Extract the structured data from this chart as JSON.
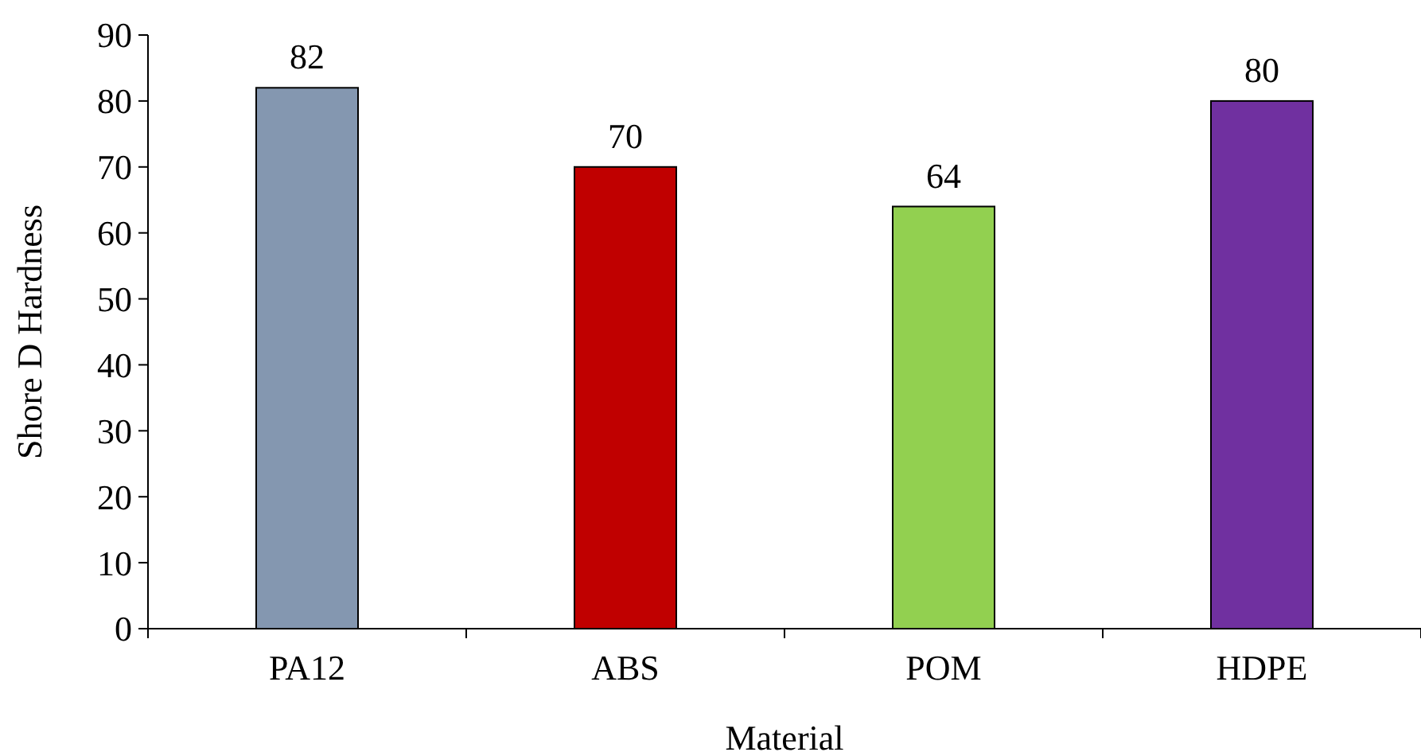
{
  "chart_data": {
    "type": "bar",
    "xlabel": "Material",
    "ylabel": "Shore D Hardness",
    "categories": [
      "PA12",
      "ABS",
      "POM",
      "HDPE"
    ],
    "values": [
      82,
      70,
      64,
      80
    ],
    "colors": [
      "#8497b0",
      "#c00000",
      "#92d050",
      "#7030a0"
    ],
    "ylim": [
      0,
      90
    ],
    "yticks": [
      0,
      10,
      20,
      30,
      40,
      50,
      60,
      70,
      80,
      90
    ],
    "data_labels": true,
    "grid": false
  }
}
